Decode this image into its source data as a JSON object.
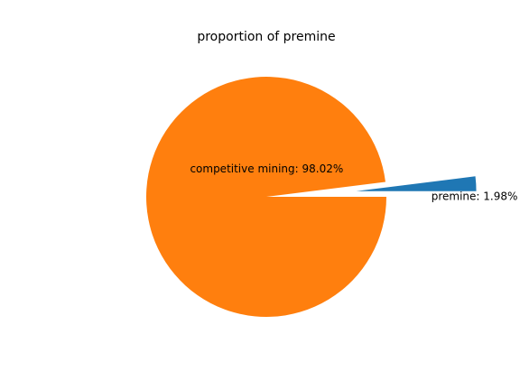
{
  "chart_data": {
    "type": "pie",
    "title": "proportion of premine",
    "slices": [
      {
        "label": "premine",
        "value": 1.98,
        "display": "premine: 1.98%",
        "color": "#1f77b4",
        "exploded": true
      },
      {
        "label": "competitive mining",
        "value": 98.02,
        "display": "competitive mining: 98.02%",
        "color": "#ff7f0e",
        "exploded": false
      }
    ],
    "start_angle_deg": 0,
    "direction": "counterclockwise",
    "legend": "none"
  }
}
